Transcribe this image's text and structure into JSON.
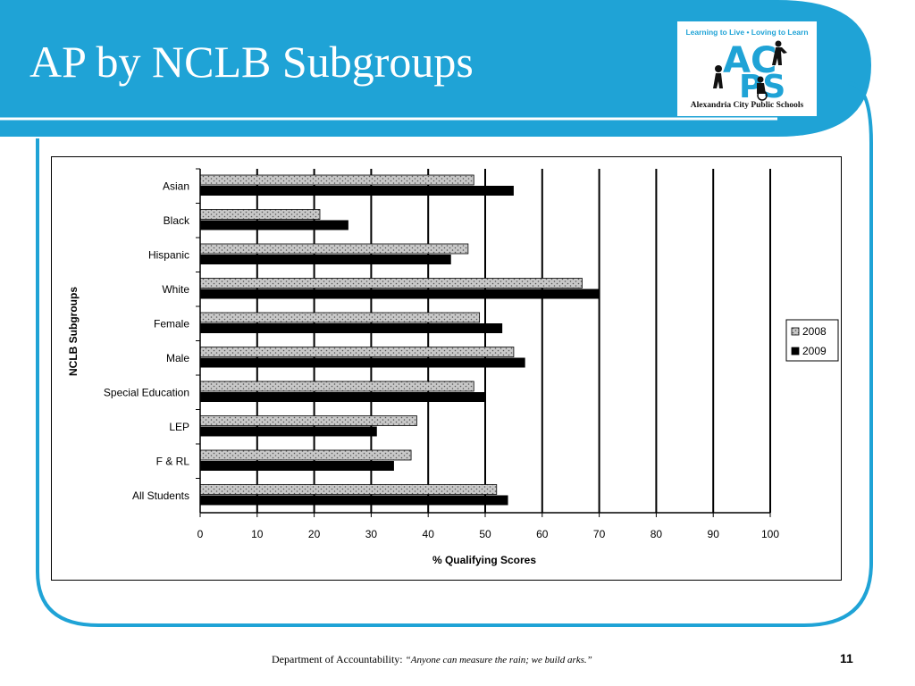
{
  "slide": {
    "title": "AP by NCLB Subgroups",
    "accent_color": "#1fa3d6",
    "footer": {
      "department": "Department of Accountability:",
      "quote": "“Anyone can measure the rain; we build arks.”",
      "page_number": "11"
    },
    "logo": {
      "tagline": "Learning to Live • Loving to Learn",
      "letters_top": "AC",
      "letters_bottom": "PS",
      "school_name": "Alexandria City Public Schools"
    }
  },
  "chart_data": {
    "type": "bar",
    "orientation": "horizontal",
    "title": "",
    "xlabel": "% Qualifying Scores",
    "ylabel": "NCLB Subgroups",
    "xlim": [
      0,
      100
    ],
    "xticks": [
      0,
      10,
      20,
      30,
      40,
      50,
      60,
      70,
      80,
      90,
      100
    ],
    "grid": "vertical",
    "legend_position": "right",
    "categories": [
      "Asian",
      "Black",
      "Hispanic",
      "White",
      "Female",
      "Male",
      "Special Education",
      "LEP",
      "F & RL",
      "All Students"
    ],
    "series": [
      {
        "name": "2008",
        "values": [
          48,
          21,
          47,
          67,
          49,
          55,
          48,
          38,
          37,
          52
        ],
        "color": "#c8c8c8",
        "pattern": "dotted"
      },
      {
        "name": "2009",
        "values": [
          55,
          26,
          44,
          70,
          53,
          57,
          50,
          31,
          34,
          54
        ],
        "color": "#000000"
      }
    ]
  }
}
